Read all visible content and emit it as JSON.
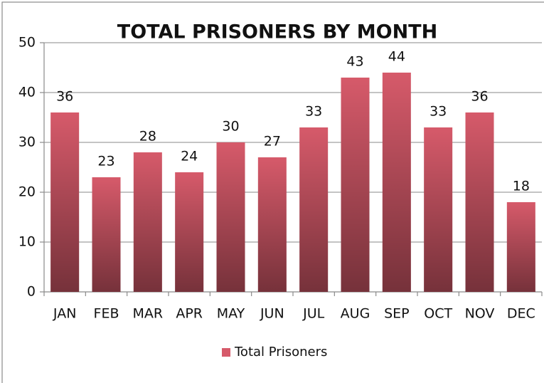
{
  "chart_data": {
    "type": "bar",
    "title": "TOTAL PRISONERS BY MONTH",
    "categories": [
      "JAN",
      "FEB",
      "MAR",
      "APR",
      "MAY",
      "JUN",
      "JUL",
      "AUG",
      "SEP",
      "OCT",
      "NOV",
      "DEC"
    ],
    "series": [
      {
        "name": "Total Prisoners",
        "color": "#d65a6a",
        "values": [
          36,
          23,
          28,
          24,
          30,
          27,
          33,
          43,
          44,
          33,
          36,
          18
        ]
      }
    ],
    "ylim": [
      0,
      50
    ],
    "yticks": [
      0,
      10,
      20,
      30,
      40,
      50
    ],
    "grid": true,
    "legend": "bottom"
  }
}
